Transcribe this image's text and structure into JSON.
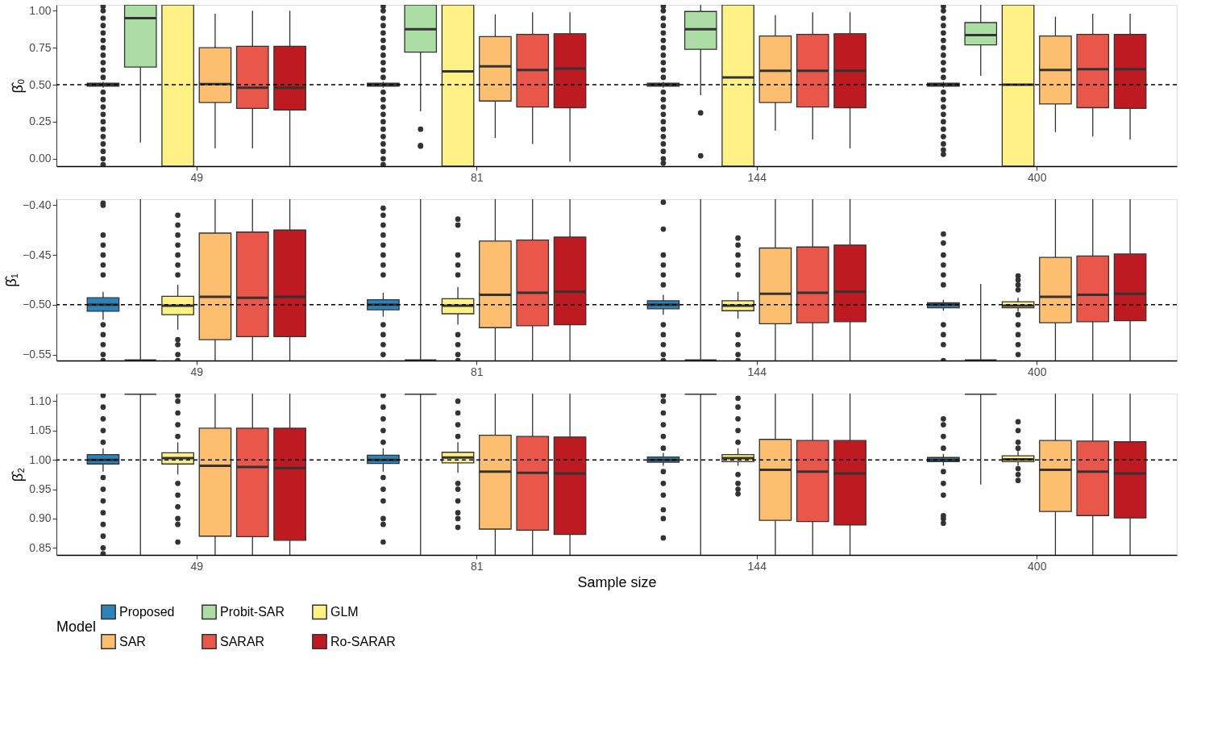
{
  "chart_data": [
    {
      "type": "box",
      "ylabel": "β̂₀",
      "categories": [
        "49",
        "81",
        "144",
        "400"
      ],
      "ylim": [
        -0.05,
        1.04
      ],
      "yticks": [
        {
          "value": 0,
          "label": "0.00"
        },
        {
          "value": 0.25,
          "label": "0.25"
        },
        {
          "value": 0.5,
          "label": "0.50"
        },
        {
          "value": 0.75,
          "label": "0.75"
        },
        {
          "value": 1,
          "label": "1.00"
        }
      ],
      "ref_lines": [
        {
          "axis": "y",
          "value": 0.5,
          "line_style": "dashed"
        }
      ],
      "series": [
        {
          "color": "#2b83ba",
          "boxes": [
            {
              "low": 0.48,
              "q1": 0.49,
              "median": 0.5,
              "q3": 0.51,
              "high": 0.52,
              "outliers": [
                -0.04,
                0.0,
                0.05,
                0.1,
                0.15,
                0.2,
                0.25,
                0.3,
                0.35,
                0.4,
                0.45,
                0.55,
                0.6,
                0.65,
                0.7,
                0.75,
                0.8,
                0.85,
                0.9,
                0.95,
                1.0,
                1.03
              ]
            },
            {
              "low": 0.48,
              "q1": 0.49,
              "median": 0.5,
              "q3": 0.51,
              "high": 0.52,
              "outliers": [
                -0.04,
                0.0,
                0.05,
                0.1,
                0.15,
                0.2,
                0.25,
                0.3,
                0.35,
                0.4,
                0.45,
                0.55,
                0.6,
                0.65,
                0.7,
                0.75,
                0.8,
                0.85,
                0.9,
                0.95,
                1.0,
                1.03
              ]
            },
            {
              "low": 0.48,
              "q1": 0.49,
              "median": 0.5,
              "q3": 0.51,
              "high": 0.52,
              "outliers": [
                -0.03,
                0.0,
                0.05,
                0.1,
                0.15,
                0.2,
                0.25,
                0.3,
                0.35,
                0.4,
                0.45,
                0.55,
                0.6,
                0.65,
                0.7,
                0.75,
                0.8,
                0.85,
                0.9,
                0.95,
                1.0,
                1.03
              ]
            },
            {
              "low": 0.48,
              "q1": 0.49,
              "median": 0.5,
              "q3": 0.51,
              "high": 0.52,
              "outliers": [
                0.03,
                0.06,
                0.1,
                0.15,
                0.2,
                0.25,
                0.3,
                0.35,
                0.4,
                0.45,
                0.55,
                0.6,
                0.65,
                0.7,
                0.75,
                0.8,
                0.85,
                0.9,
                0.95,
                1.0,
                1.03
              ]
            }
          ]
        },
        {
          "color": "#abdda4",
          "boxes": [
            {
              "low": 0.11,
              "q1": 0.62,
              "median": 0.95,
              "q3": 1.04,
              "high": 1.04
            },
            {
              "low": 0.32,
              "q1": 0.72,
              "median": 0.875,
              "q3": 1.04,
              "high": 1.04,
              "outliers": [
                0.2,
                0.09,
                0.085
              ]
            },
            {
              "low": 0.43,
              "q1": 0.74,
              "median": 0.875,
              "q3": 0.995,
              "high": 1.04,
              "outliers": [
                0.31,
                0.02
              ]
            },
            {
              "low": 0.56,
              "q1": 0.77,
              "median": 0.835,
              "q3": 0.92,
              "high": 1.04
            }
          ]
        },
        {
          "color": "#fff185",
          "boxes": [
            {
              "low": -0.05,
              "q1": -0.05,
              "q3": 1.04,
              "high": 1.04
            },
            {
              "low": -0.05,
              "q1": -0.05,
              "median": 0.59,
              "q3": 1.04,
              "high": 1.04
            },
            {
              "low": -0.05,
              "q1": -0.05,
              "median": 0.55,
              "q3": 1.04,
              "high": 1.04
            },
            {
              "low": -0.05,
              "q1": -0.05,
              "median": 0.5,
              "q3": 1.04,
              "high": 1.04
            }
          ]
        },
        {
          "color": "#fdbf6f",
          "boxes": [
            {
              "low": 0.07,
              "q1": 0.38,
              "median": 0.505,
              "q3": 0.75,
              "high": 0.98
            },
            {
              "low": 0.14,
              "q1": 0.39,
              "median": 0.625,
              "q3": 0.825,
              "high": 0.975
            },
            {
              "low": 0.19,
              "q1": 0.38,
              "median": 0.595,
              "q3": 0.83,
              "high": 0.97
            },
            {
              "low": 0.18,
              "q1": 0.37,
              "median": 0.6,
              "q3": 0.83,
              "high": 0.96
            }
          ]
        },
        {
          "color": "#e9574a",
          "boxes": [
            {
              "low": 0.07,
              "q1": 0.34,
              "median": 0.48,
              "q3": 0.76,
              "high": 1.0
            },
            {
              "low": 0.1,
              "q1": 0.35,
              "median": 0.6,
              "q3": 0.84,
              "high": 0.99
            },
            {
              "low": 0.13,
              "q1": 0.35,
              "median": 0.595,
              "q3": 0.84,
              "high": 0.99
            },
            {
              "low": 0.15,
              "q1": 0.345,
              "median": 0.605,
              "q3": 0.84,
              "high": 0.98
            }
          ]
        },
        {
          "color": "#bd1a22",
          "boxes": [
            {
              "low": -0.05,
              "q1": 0.33,
              "median": 0.48,
              "q3": 0.76,
              "high": 1.0
            },
            {
              "low": -0.02,
              "q1": 0.345,
              "median": 0.61,
              "q3": 0.845,
              "high": 0.99
            },
            {
              "low": 0.07,
              "q1": 0.345,
              "median": 0.595,
              "q3": 0.845,
              "high": 0.99
            },
            {
              "low": 0.13,
              "q1": 0.34,
              "median": 0.605,
              "q3": 0.84,
              "high": 0.98
            }
          ]
        }
      ]
    },
    {
      "type": "box",
      "ylabel": "β̂₁",
      "categories": [
        "49",
        "81",
        "144",
        "400"
      ],
      "ylim": [
        -0.556,
        -0.394
      ],
      "yticks": [
        {
          "value": -0.4,
          "label": "−0.40"
        },
        {
          "value": -0.45,
          "label": "−0.45"
        },
        {
          "value": -0.5,
          "label": "−0.50"
        },
        {
          "value": -0.55,
          "label": "−0.55"
        }
      ],
      "ref_lines": [
        {
          "axis": "y",
          "value": -0.5,
          "line_style": "dashed"
        }
      ],
      "series": [
        {
          "color": "#2b83ba",
          "boxes": [
            {
              "low": -0.515,
              "q1": -0.5065,
              "median": -0.5,
              "q3": -0.493,
              "high": -0.487,
              "outliers": [
                -0.398,
                -0.4,
                -0.43,
                -0.44,
                -0.45,
                -0.46,
                -0.47,
                -0.52,
                -0.53,
                -0.54,
                -0.55,
                -0.556
              ]
            },
            {
              "low": -0.512,
              "q1": -0.505,
              "median": -0.5,
              "q3": -0.495,
              "high": -0.488,
              "outliers": [
                -0.403,
                -0.41,
                -0.42,
                -0.43,
                -0.44,
                -0.45,
                -0.46,
                -0.47,
                -0.52,
                -0.53,
                -0.54,
                -0.55
              ]
            },
            {
              "low": -0.51,
              "q1": -0.504,
              "median": -0.5,
              "q3": -0.496,
              "high": -0.49,
              "outliers": [
                -0.397,
                -0.424,
                -0.45,
                -0.46,
                -0.47,
                -0.48,
                -0.52,
                -0.53,
                -0.54,
                -0.55,
                -0.556
              ]
            },
            {
              "low": -0.506,
              "q1": -0.503,
              "median": -0.5,
              "q3": -0.498,
              "high": -0.495,
              "outliers": [
                -0.429,
                -0.438,
                -0.45,
                -0.46,
                -0.47,
                -0.48,
                -0.52,
                -0.53,
                -0.54,
                -0.556
              ]
            }
          ]
        },
        {
          "color": "#abdda4",
          "boxes": [
            {
              "low": -0.556,
              "q1": -0.556,
              "median": -0.556,
              "q3": -0.556,
              "high": -0.394
            },
            {
              "low": -0.556,
              "q1": -0.556,
              "median": -0.556,
              "q3": -0.556,
              "high": -0.394
            },
            {
              "low": -0.556,
              "q1": -0.556,
              "median": -0.556,
              "q3": -0.556,
              "high": -0.394
            },
            {
              "low": -0.556,
              "q1": -0.556,
              "median": -0.556,
              "q3": -0.556,
              "high": -0.479
            }
          ]
        },
        {
          "color": "#fff185",
          "boxes": [
            {
              "low": -0.525,
              "q1": -0.51,
              "median": -0.501,
              "q3": -0.4915,
              "high": -0.48,
              "outliers": [
                -0.41,
                -0.42,
                -0.43,
                -0.44,
                -0.45,
                -0.46,
                -0.47,
                -0.535,
                -0.54,
                -0.55,
                -0.556
              ]
            },
            {
              "low": -0.52,
              "q1": -0.509,
              "median": -0.501,
              "q3": -0.494,
              "high": -0.482,
              "outliers": [
                -0.414,
                -0.42,
                -0.45,
                -0.46,
                -0.47,
                -0.53,
                -0.54,
                -0.55,
                -0.556
              ]
            },
            {
              "low": -0.514,
              "q1": -0.506,
              "median": -0.501,
              "q3": -0.496,
              "high": -0.487,
              "outliers": [
                -0.433,
                -0.44,
                -0.45,
                -0.46,
                -0.47,
                -0.53,
                -0.54,
                -0.55,
                -0.556
              ]
            },
            {
              "low": -0.507,
              "q1": -0.503,
              "median": -0.501,
              "q3": -0.497,
              "high": -0.493,
              "outliers": [
                -0.471,
                -0.475,
                -0.48,
                -0.485,
                -0.51,
                -0.52,
                -0.53,
                -0.54,
                -0.55
              ]
            }
          ]
        },
        {
          "color": "#fdbf6f",
          "boxes": [
            {
              "low": -0.556,
              "q1": -0.535,
              "median": -0.492,
              "q3": -0.428,
              "high": -0.394
            },
            {
              "low": -0.556,
              "q1": -0.523,
              "median": -0.49,
              "q3": -0.436,
              "high": -0.394
            },
            {
              "low": -0.556,
              "q1": -0.519,
              "median": -0.489,
              "q3": -0.443,
              "high": -0.394
            },
            {
              "low": -0.556,
              "q1": -0.518,
              "median": -0.492,
              "q3": -0.4525,
              "high": -0.394
            }
          ]
        },
        {
          "color": "#e9574a",
          "boxes": [
            {
              "low": -0.556,
              "q1": -0.532,
              "median": -0.493,
              "q3": -0.427,
              "high": -0.394
            },
            {
              "low": -0.556,
              "q1": -0.521,
              "median": -0.488,
              "q3": -0.435,
              "high": -0.394
            },
            {
              "low": -0.556,
              "q1": -0.518,
              "median": -0.488,
              "q3": -0.442,
              "high": -0.394
            },
            {
              "low": -0.556,
              "q1": -0.517,
              "median": -0.49,
              "q3": -0.451,
              "high": -0.394
            }
          ]
        },
        {
          "color": "#bd1a22",
          "boxes": [
            {
              "low": -0.556,
              "q1": -0.532,
              "median": -0.492,
              "q3": -0.425,
              "high": -0.394
            },
            {
              "low": -0.556,
              "q1": -0.52,
              "median": -0.487,
              "q3": -0.432,
              "high": -0.394
            },
            {
              "low": -0.556,
              "q1": -0.517,
              "median": -0.487,
              "q3": -0.44,
              "high": -0.394
            },
            {
              "low": -0.556,
              "q1": -0.516,
              "median": -0.489,
              "q3": -0.449,
              "high": -0.394
            }
          ]
        }
      ]
    },
    {
      "type": "box",
      "ylabel": "β̂₂",
      "xlabel": "Sample size",
      "legend": "bottom",
      "legend_title": "Model",
      "categories": [
        "49",
        "81",
        "144",
        "400"
      ],
      "ylim": [
        0.838,
        1.113
      ],
      "yticks": [
        {
          "value": 0.85,
          "label": "0.85"
        },
        {
          "value": 0.9,
          "label": "0.90"
        },
        {
          "value": 0.95,
          "label": "0.95"
        },
        {
          "value": 1,
          "label": "1.00"
        },
        {
          "value": 1.05,
          "label": "1.05"
        },
        {
          "value": 1.1,
          "label": "1.10"
        }
      ],
      "ref_lines": [
        {
          "axis": "y",
          "value": 1.0,
          "line_style": "dashed"
        }
      ],
      "series": [
        {
          "name": "Proposed",
          "color": "#2b83ba",
          "boxes": [
            {
              "low": 0.98,
              "q1": 0.993,
              "median": 1.0,
              "q3": 1.009,
              "high": 1.02,
              "outliers": [
                0.84,
                0.85,
                0.87,
                0.89,
                0.91,
                0.93,
                0.95,
                0.97,
                1.03,
                1.05,
                1.07,
                1.09,
                1.11
              ]
            },
            {
              "low": 0.98,
              "q1": 0.994,
              "median": 1.0,
              "q3": 1.008,
              "high": 1.02,
              "outliers": [
                0.86,
                0.89,
                0.9,
                0.93,
                0.95,
                0.97,
                1.03,
                1.05,
                1.07,
                1.09,
                1.11
              ]
            },
            {
              "low": 0.99,
              "q1": 0.996,
              "median": 1.0,
              "q3": 1.005,
              "high": 1.012,
              "outliers": [
                0.867,
                0.9,
                0.915,
                0.94,
                0.96,
                0.98,
                1.02,
                1.04,
                1.06,
                1.08,
                1.1,
                1.11
              ]
            },
            {
              "low": 0.99,
              "q1": 0.997,
              "median": 1.0,
              "q3": 1.004,
              "high": 1.01,
              "outliers": [
                0.892,
                0.9,
                0.905,
                0.94,
                0.96,
                0.98,
                1.02,
                1.04,
                1.06,
                1.07
              ]
            }
          ]
        },
        {
          "name": "Probit-SAR",
          "color": "#abdda4",
          "boxes": [
            {
              "low": 0.838,
              "q1": 1.113,
              "median": 1.113,
              "q3": 1.113,
              "high": 1.113
            },
            {
              "low": 0.838,
              "q1": 1.113,
              "median": 1.113,
              "q3": 1.113,
              "high": 1.113
            },
            {
              "low": 0.838,
              "q1": 1.113,
              "median": 1.113,
              "q3": 1.113,
              "high": 1.113
            },
            {
              "low": 0.958,
              "q1": 1.113,
              "median": 1.113,
              "q3": 1.113,
              "high": 1.113
            }
          ]
        },
        {
          "name": "GLM",
          "color": "#fff185",
          "boxes": [
            {
              "low": 0.975,
              "q1": 0.993,
              "median": 1.003,
              "q3": 1.012,
              "high": 1.03,
              "outliers": [
                0.86,
                0.89,
                0.9,
                0.92,
                0.94,
                0.96,
                1.04,
                1.06,
                1.08,
                1.1,
                1.11
              ]
            },
            {
              "low": 0.978,
              "q1": 0.995,
              "median": 1.004,
              "q3": 1.013,
              "high": 1.03,
              "outliers": [
                0.885,
                0.9,
                0.91,
                0.93,
                0.95,
                0.96,
                1.04,
                1.06,
                1.08,
                1.1
              ]
            },
            {
              "low": 0.99,
              "q1": 0.997,
              "median": 1.003,
              "q3": 1.009,
              "high": 1.02,
              "outliers": [
                0.942,
                0.95,
                0.96,
                0.975,
                1.03,
                1.05,
                1.07,
                1.09,
                1.105
              ]
            },
            {
              "low": 0.99,
              "q1": 0.997,
              "median": 1.001,
              "q3": 1.007,
              "high": 1.015,
              "outliers": [
                0.965,
                0.975,
                0.985,
                1.02,
                1.03,
                1.05,
                1.065
              ]
            }
          ]
        },
        {
          "name": "SAR",
          "color": "#fdbf6f",
          "boxes": [
            {
              "low": 0.838,
              "q1": 0.87,
              "median": 0.99,
              "q3": 1.054,
              "high": 1.113
            },
            {
              "low": 0.838,
              "q1": 0.882,
              "median": 0.98,
              "q3": 1.042,
              "high": 1.113
            },
            {
              "low": 0.838,
              "q1": 0.897,
              "median": 0.983,
              "q3": 1.035,
              "high": 1.113
            },
            {
              "low": 0.838,
              "q1": 0.912,
              "median": 0.983,
              "q3": 1.033,
              "high": 1.113
            }
          ]
        },
        {
          "name": "SARAR",
          "color": "#e9574a",
          "boxes": [
            {
              "low": 0.838,
              "q1": 0.869,
              "median": 0.988,
              "q3": 1.054,
              "high": 1.113
            },
            {
              "low": 0.838,
              "q1": 0.88,
              "median": 0.978,
              "q3": 1.04,
              "high": 1.113
            },
            {
              "low": 0.838,
              "q1": 0.895,
              "median": 0.98,
              "q3": 1.033,
              "high": 1.113
            },
            {
              "low": 0.838,
              "q1": 0.905,
              "median": 0.98,
              "q3": 1.032,
              "high": 1.113
            }
          ]
        },
        {
          "name": "Ro-SARAR",
          "color": "#bd1a22",
          "boxes": [
            {
              "low": 0.838,
              "q1": 0.863,
              "median": 0.986,
              "q3": 1.054,
              "high": 1.113
            },
            {
              "low": 0.838,
              "q1": 0.873,
              "median": 0.977,
              "q3": 1.039,
              "high": 1.113
            },
            {
              "low": 0.838,
              "q1": 0.889,
              "median": 0.977,
              "q3": 1.033,
              "high": 1.113
            },
            {
              "low": 0.838,
              "q1": 0.901,
              "median": 0.977,
              "q3": 1.031,
              "high": 1.113
            }
          ]
        }
      ]
    }
  ]
}
